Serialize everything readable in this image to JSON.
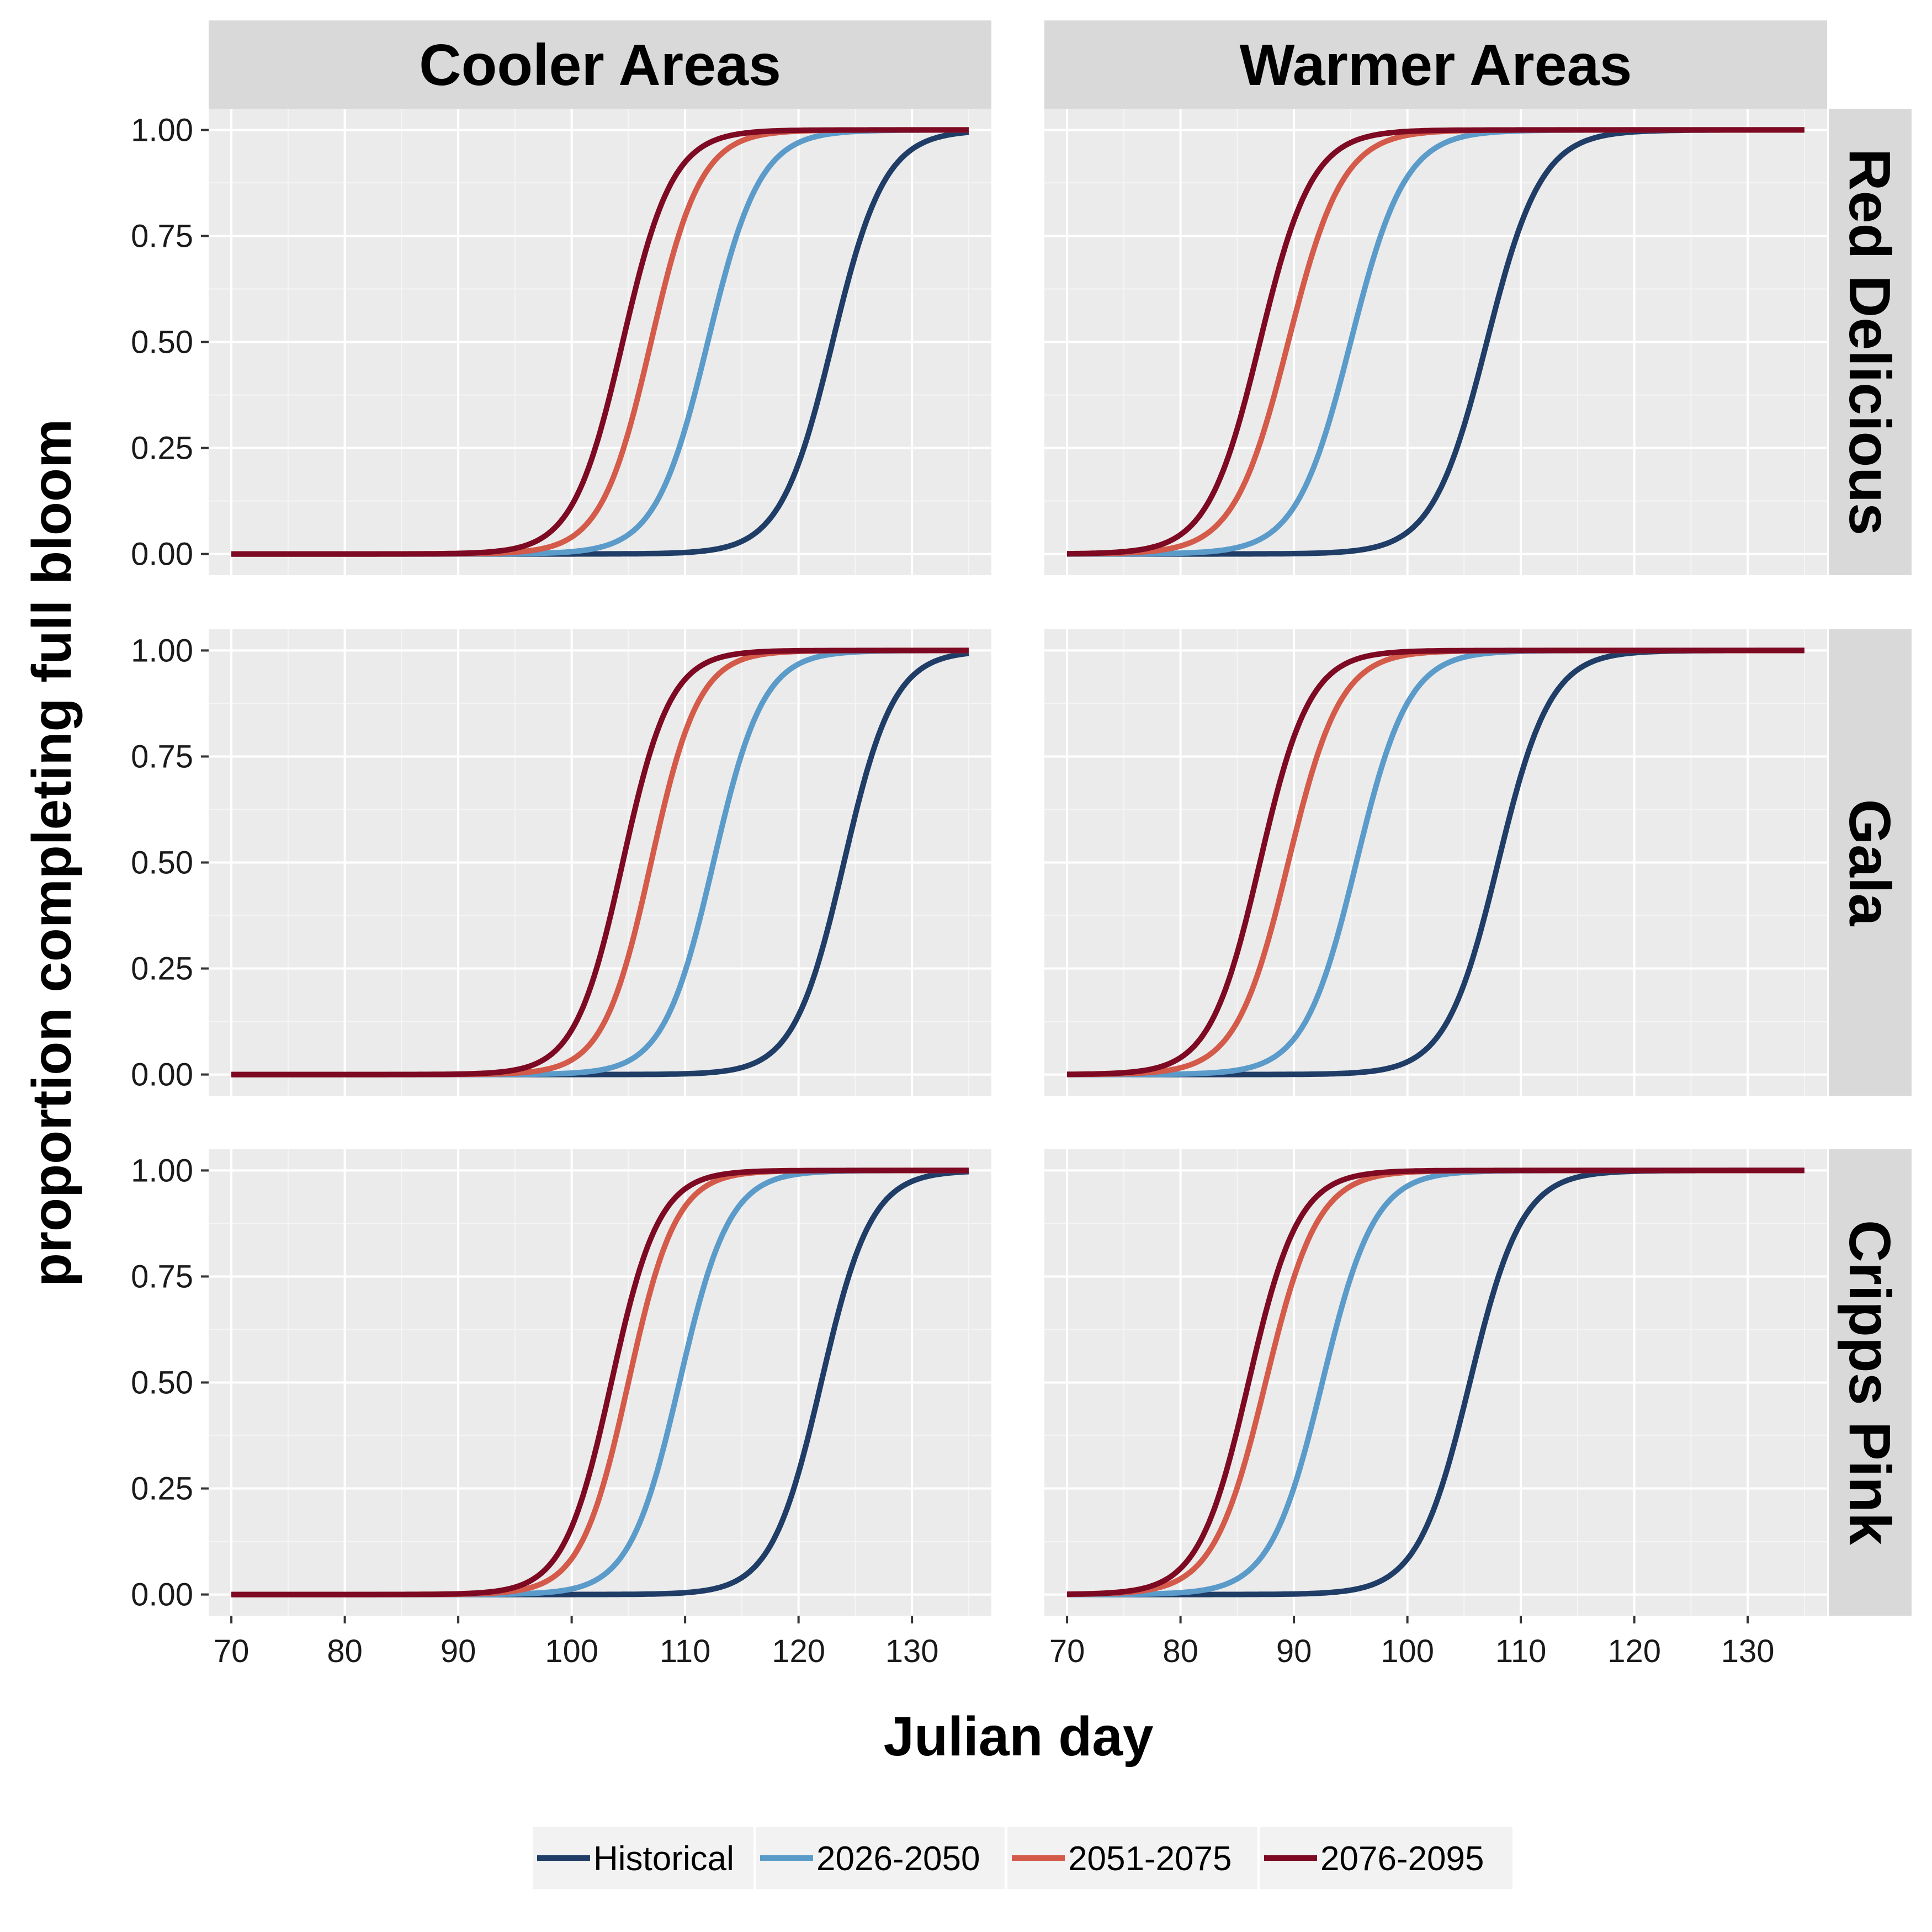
{
  "chart_data": {
    "type": "line",
    "layout": "facet-grid",
    "xlabel": "Julian day",
    "ylabel": "proportion completing full bloom",
    "xlim": [
      68,
      137
    ],
    "ylim": [
      -0.05,
      1.05
    ],
    "xticks": [
      70,
      80,
      90,
      100,
      110,
      120,
      130
    ],
    "yticks": [
      "0.00",
      "0.25",
      "0.50",
      "0.75",
      "1.00"
    ],
    "yvalues": [
      0,
      0.25,
      0.5,
      0.75,
      1
    ],
    "x_range": [
      70,
      135
    ],
    "columns": [
      "Cooler Areas",
      "Warmer Areas"
    ],
    "rows": [
      "Red Delicious",
      "Gala",
      "Cripps Pink"
    ],
    "grid": true,
    "legend_position": "bottom",
    "series_names": [
      "Historical",
      "2026-2050",
      "2051-2075",
      "2076-2095"
    ],
    "series_colors": [
      "#1f3d66",
      "#5b9bca",
      "#d45a4a",
      "#7d0a22"
    ],
    "curve_form": "logistic",
    "panels": [
      {
        "row": "Red Delicious",
        "column": "Cooler Areas",
        "midpoints": [
          123,
          112,
          107,
          104.5
        ],
        "spreads": [
          2.3,
          2.3,
          2.2,
          2.2
        ]
      },
      {
        "row": "Red Delicious",
        "column": "Warmer Areas",
        "midpoints": [
          107,
          95,
          89.5,
          87
        ],
        "spreads": [
          2.4,
          2.4,
          2.4,
          2.3
        ]
      },
      {
        "row": "Gala",
        "column": "Cooler Areas",
        "midpoints": [
          124,
          112.5,
          107,
          104.5
        ],
        "spreads": [
          2.2,
          2.2,
          2.1,
          2.1
        ]
      },
      {
        "row": "Gala",
        "column": "Warmer Areas",
        "midpoints": [
          108,
          95.5,
          89.5,
          87
        ],
        "spreads": [
          2.3,
          2.3,
          2.3,
          2.2
        ]
      },
      {
        "row": "Cripps Pink",
        "column": "Cooler Areas",
        "midpoints": [
          122,
          109.5,
          105,
          103.5
        ],
        "spreads": [
          2.2,
          2.2,
          2.1,
          2.1
        ]
      },
      {
        "row": "Cripps Pink",
        "column": "Warmer Areas",
        "midpoints": [
          105.5,
          92.5,
          87.5,
          86
        ],
        "spreads": [
          2.3,
          2.3,
          2.3,
          2.2
        ]
      }
    ]
  }
}
